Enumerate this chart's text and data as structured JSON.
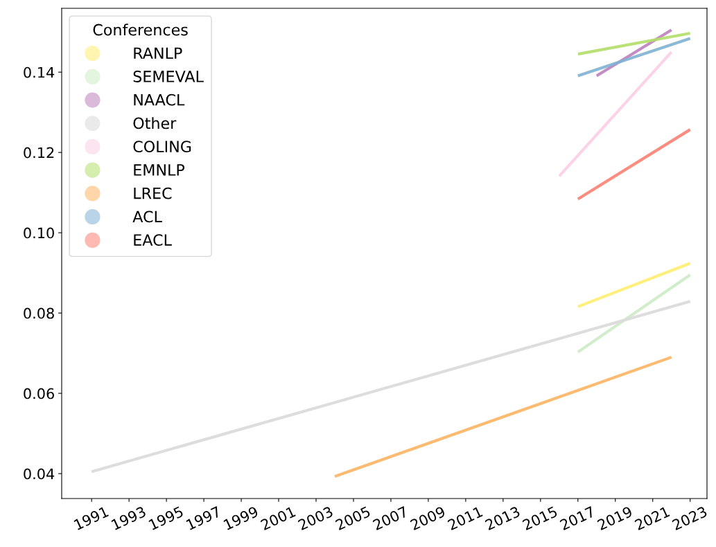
{
  "chart_data": {
    "type": "line",
    "legend_title": "Conferences",
    "legend": "top left",
    "grid": false,
    "marker": "none",
    "xlim": [
      1989.4,
      2023.9
    ],
    "xticks": [
      1991,
      1993,
      1995,
      1997,
      1999,
      2001,
      2003,
      2005,
      2007,
      2009,
      2011,
      2013,
      2015,
      2017,
      2019,
      2021,
      2023
    ],
    "ylim": [
      0.0338,
      0.1559
    ],
    "yticks": [
      {
        "value": 0.04,
        "label": "0.04"
      },
      {
        "value": 0.06,
        "label": "0.06"
      },
      {
        "value": 0.08,
        "label": "0.08"
      },
      {
        "value": 0.1,
        "label": "0.10"
      },
      {
        "value": 0.12,
        "label": "0.12"
      },
      {
        "value": 0.14,
        "label": "0.14"
      }
    ],
    "series": [
      {
        "name": "RANLP",
        "color": "#ffed6f",
        "x": [
          2017,
          2023
        ],
        "values": [
          0.0816,
          0.0924
        ]
      },
      {
        "name": "SEMEVAL",
        "color": "#ccebc5",
        "x": [
          2017,
          2023
        ],
        "values": [
          0.0703,
          0.0895
        ]
      },
      {
        "name": "NAACL",
        "color": "#bc80bd",
        "x": [
          2018,
          2022
        ],
        "values": [
          0.1391,
          0.1505
        ]
      },
      {
        "name": "Other",
        "color": "#d9d9d9",
        "x": [
          1991,
          2023
        ],
        "values": [
          0.0405,
          0.0829
        ]
      },
      {
        "name": "COLING",
        "color": "#fccde5",
        "x": [
          2016,
          2022
        ],
        "values": [
          0.1141,
          0.145
        ]
      },
      {
        "name": "EMNLP",
        "color": "#b3de69",
        "x": [
          2017,
          2023
        ],
        "values": [
          0.1445,
          0.1497
        ]
      },
      {
        "name": "LREC",
        "color": "#fdb462",
        "x": [
          2004,
          2022
        ],
        "values": [
          0.0393,
          0.069
        ]
      },
      {
        "name": "ACL",
        "color": "#80b1d3",
        "x": [
          2017,
          2023
        ],
        "values": [
          0.1391,
          0.1484
        ]
      },
      {
        "name": "EACL",
        "color": "#fb8072",
        "x": [
          2017,
          2023
        ],
        "values": [
          0.1084,
          0.1257
        ]
      }
    ]
  }
}
